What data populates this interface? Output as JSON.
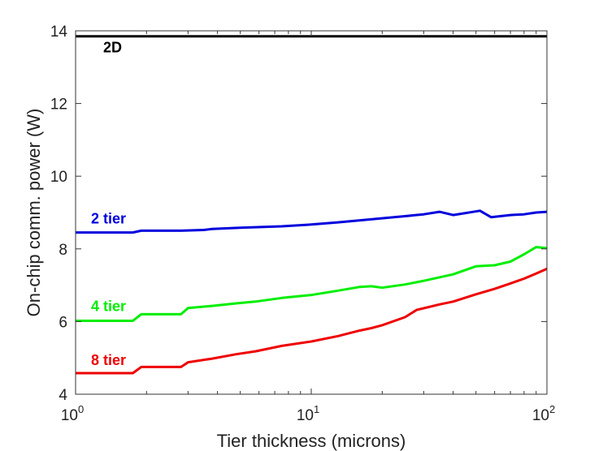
{
  "chart_data": {
    "type": "line",
    "xlabel": "Tier thickness (microns)",
    "ylabel": "On-chip comm. power (W)",
    "xscale": "log",
    "xlim": [
      1,
      100
    ],
    "ylim": [
      4,
      14
    ],
    "xticks": [
      {
        "value": 1,
        "base": "10",
        "exp": "0"
      },
      {
        "value": 10,
        "base": "10",
        "exp": "1"
      },
      {
        "value": 100,
        "base": "10",
        "exp": "2"
      }
    ],
    "yticks": [
      4,
      6,
      8,
      10,
      12,
      14
    ],
    "grid": false,
    "series": [
      {
        "name": "2D",
        "color": "#000000",
        "x": [
          1,
          100
        ],
        "y": [
          13.85,
          13.85
        ]
      },
      {
        "name": "2 tier",
        "color": "#0000dd",
        "x": [
          1,
          1.75,
          1.9,
          2.8,
          3.5,
          3.8,
          5,
          7.5,
          10,
          13,
          17,
          25,
          30,
          35,
          40,
          52,
          58,
          70,
          80,
          90,
          100
        ],
        "y": [
          8.45,
          8.45,
          8.5,
          8.5,
          8.52,
          8.55,
          8.58,
          8.62,
          8.67,
          8.73,
          8.8,
          8.9,
          8.95,
          9.02,
          8.93,
          9.05,
          8.87,
          8.93,
          8.95,
          9.0,
          9.02
        ]
      },
      {
        "name": "4 tier",
        "color": "#00ee00",
        "x": [
          1,
          1.75,
          1.9,
          2.8,
          3.0,
          3.8,
          4.8,
          5.8,
          7.5,
          10,
          13,
          16,
          18,
          20,
          25,
          30,
          40,
          50,
          60,
          70,
          80,
          90,
          100
        ],
        "y": [
          6.02,
          6.02,
          6.2,
          6.2,
          6.37,
          6.43,
          6.5,
          6.55,
          6.65,
          6.73,
          6.85,
          6.95,
          6.97,
          6.93,
          7.02,
          7.12,
          7.3,
          7.52,
          7.55,
          7.65,
          7.85,
          8.05,
          8.02
        ]
      },
      {
        "name": "8 tier",
        "color": "#ee0000",
        "x": [
          1,
          1.75,
          1.9,
          2.8,
          3.0,
          3.8,
          4.8,
          5.8,
          7.5,
          10,
          13,
          16,
          18,
          20,
          25,
          28,
          35,
          40,
          50,
          60,
          70,
          80,
          90,
          100
        ],
        "y": [
          4.58,
          4.58,
          4.75,
          4.75,
          4.88,
          4.98,
          5.1,
          5.18,
          5.33,
          5.45,
          5.6,
          5.75,
          5.82,
          5.9,
          6.12,
          6.32,
          6.47,
          6.55,
          6.75,
          6.9,
          7.05,
          7.18,
          7.32,
          7.45
        ]
      }
    ]
  }
}
